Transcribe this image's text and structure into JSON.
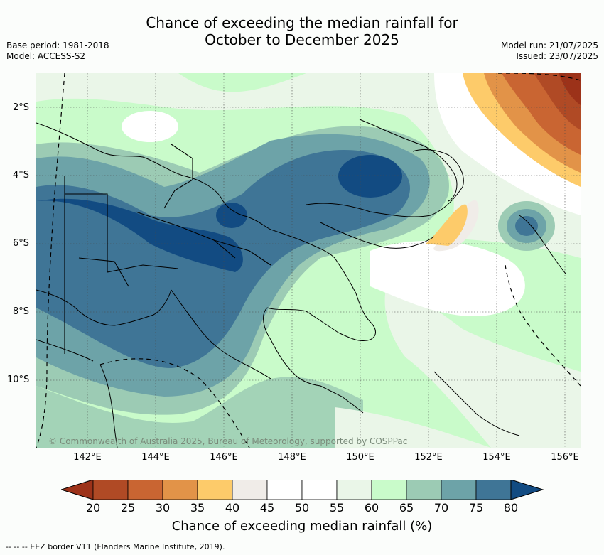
{
  "title_line1": "Chance of exceeding the median rainfall for",
  "title_line2": "October to December 2025",
  "meta": {
    "base_period": "Base period: 1981-2018",
    "model": "Model: ACCESS-S2",
    "model_run": "Model run: 21/07/2025",
    "issued": "Issued: 23/07/2025"
  },
  "copyright": "© Commonwealth of Australia 2025, Bureau of Meteorology, supported by COSPPac",
  "lat_labels": [
    "2°S",
    "4°S",
    "6°S",
    "8°S",
    "10°S"
  ],
  "lon_labels": [
    "142°E",
    "144°E",
    "146°E",
    "148°E",
    "150°E",
    "152°E",
    "154°E",
    "156°E"
  ],
  "colorbar": {
    "ticks": [
      "20",
      "25",
      "30",
      "35",
      "40",
      "45",
      "50",
      "55",
      "60",
      "65",
      "70",
      "75",
      "80"
    ],
    "colors": [
      "#9c3219",
      "#b04a25",
      "#c96532",
      "#e29348",
      "#fdcb6a",
      "#f0ece8",
      "#ffffff",
      "#ffffff",
      "#eaf6e8",
      "#c9fbca",
      "#9ccbb4",
      "#6da3a8",
      "#3f7596",
      "#124b82"
    ],
    "label": "Chance of exceeding median rainfall (%)"
  },
  "footnote": "--  --  -- EEZ border V11 (Flanders Marine Institute, 2019)."
}
